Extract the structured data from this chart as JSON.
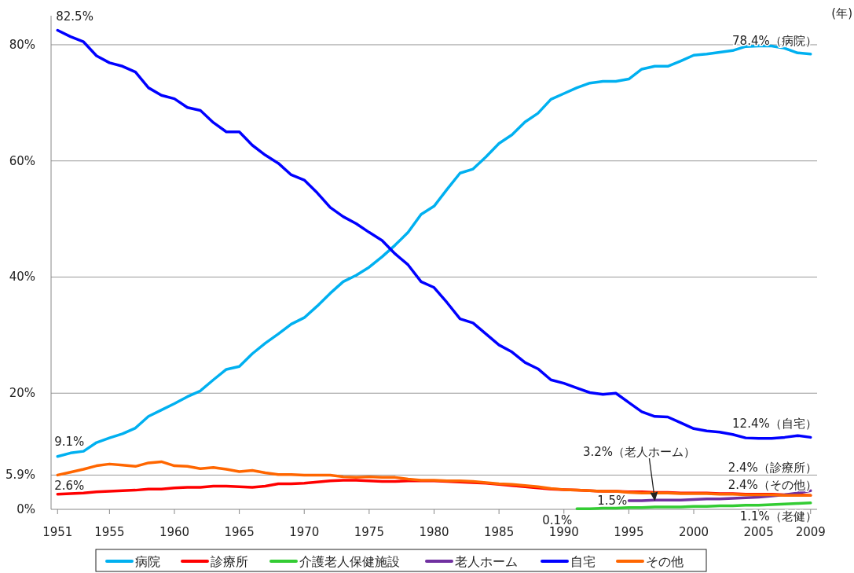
{
  "chart_data": {
    "type": "line",
    "xlabel": "(年)",
    "x": [
      1951,
      1952,
      1953,
      1954,
      1955,
      1956,
      1957,
      1958,
      1959,
      1960,
      1961,
      1962,
      1963,
      1964,
      1965,
      1966,
      1967,
      1968,
      1969,
      1970,
      1971,
      1972,
      1973,
      1974,
      1975,
      1976,
      1977,
      1978,
      1979,
      1980,
      1981,
      1982,
      1983,
      1984,
      1985,
      1986,
      1987,
      1988,
      1989,
      1990,
      1991,
      1992,
      1993,
      1994,
      1995,
      1996,
      1997,
      1998,
      1999,
      2000,
      2001,
      2002,
      2003,
      2004,
      2005,
      2006,
      2007,
      2008,
      2009
    ],
    "xlim": [
      1950.5,
      2009.5
    ],
    "xticks": [
      1951,
      1955,
      1960,
      1965,
      1970,
      1975,
      1980,
      1985,
      1990,
      1995,
      2000,
      2005,
      2009
    ],
    "ylim": [
      0,
      85
    ],
    "yticks": [
      {
        "value": 0,
        "label": "0%"
      },
      {
        "value": 5.9,
        "label": "5.9%"
      },
      {
        "value": 20,
        "label": "20%"
      },
      {
        "value": 40,
        "label": "40%"
      },
      {
        "value": 60,
        "label": "60%"
      },
      {
        "value": 80,
        "label": "80%"
      }
    ],
    "grid": "y",
    "legend": "bottom",
    "marker": "none",
    "line_style": "solid",
    "series": [
      {
        "name": "病院",
        "color": "#00b0f0",
        "values": [
          9.1,
          9.7,
          10.0,
          11.5,
          12.3,
          13.0,
          14.0,
          16.0,
          17.1,
          18.2,
          19.4,
          20.4,
          22.3,
          24.1,
          24.6,
          26.8,
          28.6,
          30.2,
          31.9,
          33.0,
          35.0,
          37.2,
          39.2,
          40.3,
          41.7,
          43.5,
          45.5,
          47.7,
          50.8,
          52.2,
          55.1,
          57.9,
          58.6,
          60.7,
          63.0,
          64.5,
          66.7,
          68.2,
          70.6,
          71.6,
          72.6,
          73.4,
          73.7,
          73.7,
          74.1,
          75.8,
          76.3,
          76.3,
          77.2,
          78.2,
          78.4,
          78.7,
          79.0,
          79.7,
          79.8,
          79.8,
          79.4,
          78.6,
          78.4
        ]
      },
      {
        "name": "診療所",
        "color": "#ff0000",
        "values": [
          2.6,
          2.7,
          2.8,
          3.0,
          3.1,
          3.2,
          3.3,
          3.5,
          3.5,
          3.7,
          3.8,
          3.8,
          4.0,
          4.0,
          3.9,
          3.8,
          4.0,
          4.4,
          4.4,
          4.5,
          4.7,
          4.9,
          5.0,
          5.0,
          4.9,
          4.8,
          4.8,
          4.9,
          4.9,
          4.9,
          4.8,
          4.7,
          4.6,
          4.5,
          4.3,
          4.1,
          3.9,
          3.7,
          3.5,
          3.4,
          3.3,
          3.2,
          3.1,
          3.1,
          3.0,
          3.0,
          2.9,
          2.9,
          2.8,
          2.8,
          2.8,
          2.7,
          2.7,
          2.6,
          2.6,
          2.6,
          2.5,
          2.5,
          2.4
        ]
      },
      {
        "name": "介護老人保健施設",
        "color": "#33cc33",
        "x": [
          1991,
          1992,
          1993,
          1994,
          1995,
          1996,
          1997,
          1998,
          1999,
          2000,
          2001,
          2002,
          2003,
          2004,
          2005,
          2006,
          2007,
          2008,
          2009
        ],
        "values": [
          0.1,
          0.1,
          0.2,
          0.2,
          0.3,
          0.3,
          0.4,
          0.4,
          0.4,
          0.5,
          0.5,
          0.6,
          0.6,
          0.7,
          0.7,
          0.8,
          0.9,
          1.0,
          1.1
        ]
      },
      {
        "name": "老人ホーム",
        "color": "#7030a0",
        "x": [
          1995,
          1996,
          1997,
          1998,
          1999,
          2000,
          2001,
          2002,
          2003,
          2004,
          2005,
          2006,
          2007,
          2008,
          2009
        ],
        "values": [
          1.5,
          1.5,
          1.6,
          1.6,
          1.6,
          1.7,
          1.8,
          1.8,
          1.9,
          2.0,
          2.1,
          2.3,
          2.5,
          2.8,
          3.2
        ]
      },
      {
        "name": "自宅",
        "color": "#0000ff",
        "values": [
          82.5,
          81.4,
          80.5,
          78.1,
          76.9,
          76.3,
          75.3,
          72.6,
          71.3,
          70.7,
          69.2,
          68.7,
          66.6,
          65.0,
          65.0,
          62.7,
          61.0,
          59.6,
          57.6,
          56.7,
          54.5,
          52.0,
          50.4,
          49.2,
          47.7,
          46.3,
          44.0,
          42.1,
          39.2,
          38.2,
          35.6,
          32.8,
          32.1,
          30.2,
          28.3,
          27.1,
          25.3,
          24.2,
          22.3,
          21.7,
          20.9,
          20.1,
          19.8,
          20.0,
          18.4,
          16.8,
          16.0,
          15.9,
          14.9,
          13.9,
          13.5,
          13.3,
          12.9,
          12.3,
          12.2,
          12.2,
          12.4,
          12.7,
          12.4
        ]
      },
      {
        "name": "その他",
        "color": "#ff6600",
        "values": [
          5.9,
          6.4,
          6.9,
          7.5,
          7.8,
          7.6,
          7.4,
          8.0,
          8.2,
          7.5,
          7.4,
          7.0,
          7.2,
          6.9,
          6.5,
          6.7,
          6.3,
          6.0,
          6.0,
          5.9,
          5.9,
          5.9,
          5.6,
          5.5,
          5.6,
          5.5,
          5.5,
          5.2,
          5.0,
          5.0,
          4.9,
          4.9,
          4.8,
          4.6,
          4.4,
          4.3,
          4.1,
          3.9,
          3.6,
          3.4,
          3.3,
          3.2,
          3.1,
          3.1,
          2.9,
          2.8,
          2.8,
          2.8,
          2.7,
          2.7,
          2.7,
          2.6,
          2.6,
          2.5,
          2.5,
          2.5,
          2.4,
          2.4,
          2.4
        ]
      }
    ],
    "annotations": [
      {
        "text": "82.5%",
        "x": 1951,
        "y": 82.5
      },
      {
        "text": "9.1%",
        "x": 1951,
        "y": 9.1
      },
      {
        "text": "2.6%",
        "x": 1951,
        "y": 2.6
      },
      {
        "text": "78.4%（病院）",
        "x": 2009,
        "y": 78.4
      },
      {
        "text": "12.4%（自宅）",
        "x": 2009,
        "y": 12.4
      },
      {
        "text": "3.2%（老人ホーム）",
        "x": 1997,
        "y": 1.6
      },
      {
        "text": "2.4%（診療所）",
        "x": 2009,
        "y": 2.4
      },
      {
        "text": "2.4%（その他）",
        "x": 2009,
        "y": 2.4
      },
      {
        "text": "1.5%",
        "x": 1995,
        "y": 1.5
      },
      {
        "text": "0.1%",
        "x": 1991,
        "y": 0.1
      },
      {
        "text": "1.1%（老健）",
        "x": 2009,
        "y": 1.1
      }
    ]
  }
}
